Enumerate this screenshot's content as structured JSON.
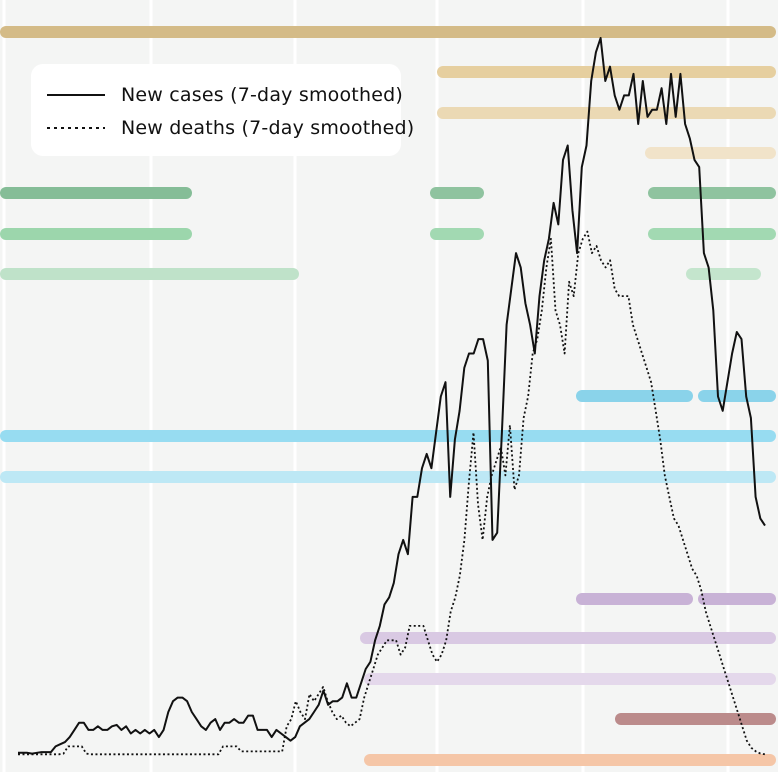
{
  "chart_data": {
    "type": "line",
    "title": "",
    "xlabel": "",
    "ylabel": "",
    "xlim": [
      0,
      150
    ],
    "ylim": [
      0,
      1000
    ],
    "grid": true,
    "legend_position": "top-left",
    "series": [
      {
        "name": "New cases (7-day smoothed)",
        "style": "solid",
        "color": "#111111",
        "values": [
          3,
          3,
          3,
          2,
          3,
          4,
          4,
          4,
          12,
          15,
          18,
          25,
          35,
          45,
          45,
          35,
          35,
          40,
          35,
          35,
          40,
          42,
          35,
          40,
          30,
          35,
          30,
          35,
          30,
          35,
          25,
          35,
          60,
          75,
          80,
          80,
          75,
          60,
          50,
          40,
          35,
          45,
          50,
          35,
          45,
          45,
          50,
          45,
          45,
          55,
          55,
          35,
          35,
          35,
          25,
          35,
          30,
          25,
          20,
          25,
          40,
          45,
          50,
          60,
          70,
          90,
          70,
          75,
          75,
          80,
          100,
          80,
          80,
          100,
          120,
          130,
          160,
          180,
          210,
          220,
          240,
          280,
          300,
          280,
          360,
          360,
          400,
          420,
          400,
          450,
          500,
          520,
          360,
          440,
          480,
          540,
          560,
          560,
          580,
          580,
          550,
          300,
          310,
          450,
          600,
          650,
          700,
          680,
          630,
          600,
          560,
          640,
          690,
          720,
          770,
          740,
          830,
          850,
          760,
          700,
          820,
          850,
          940,
          980,
          1000,
          940,
          960,
          920,
          900,
          920,
          920,
          950,
          880,
          940,
          890,
          900,
          900,
          930,
          880,
          950,
          890,
          950,
          880,
          860,
          830,
          820,
          700,
          680,
          620,
          500,
          480,
          520,
          560,
          590,
          580,
          500,
          470,
          360,
          330,
          320
        ],
        "values_scale": "relative"
      },
      {
        "name": "New deaths (7-day smoothed)",
        "style": "dotted",
        "color": "#111111",
        "values": [
          1,
          1,
          1,
          1,
          1,
          1,
          1,
          1,
          1,
          1,
          2,
          12,
          12,
          12,
          12,
          2,
          1,
          1,
          1,
          1,
          1,
          1,
          1,
          1,
          1,
          1,
          1,
          1,
          1,
          1,
          1,
          1,
          1,
          1,
          1,
          1,
          1,
          1,
          1,
          1,
          1,
          1,
          1,
          1,
          1,
          12,
          12,
          12,
          12,
          5,
          5,
          5,
          5,
          5,
          5,
          5,
          5,
          5,
          5,
          40,
          50,
          75,
          60,
          50,
          85,
          75,
          85,
          95,
          75,
          60,
          50,
          55,
          45,
          40,
          45,
          50,
          80,
          100,
          120,
          140,
          150,
          160,
          160,
          160,
          140,
          150,
          180,
          180,
          180,
          180,
          160,
          140,
          130,
          140,
          160,
          200,
          220,
          250,
          300,
          380,
          450,
          350,
          300,
          360,
          390,
          410,
          430,
          390,
          460,
          370,
          390,
          470,
          500,
          560,
          580,
          620,
          680,
          720,
          620,
          600,
          560,
          660,
          640,
          700,
          720,
          730,
          700,
          710,
          690,
          680,
          690,
          650,
          640,
          640,
          640,
          600,
          580,
          560,
          540,
          520,
          480,
          440,
          390,
          360,
          330,
          320,
          300,
          280,
          260,
          250,
          230,
          200,
          180,
          160,
          140,
          120,
          100,
          80,
          60,
          40,
          20,
          10,
          5,
          2,
          1
        ],
        "values_scale": "relative"
      }
    ]
  }
}
